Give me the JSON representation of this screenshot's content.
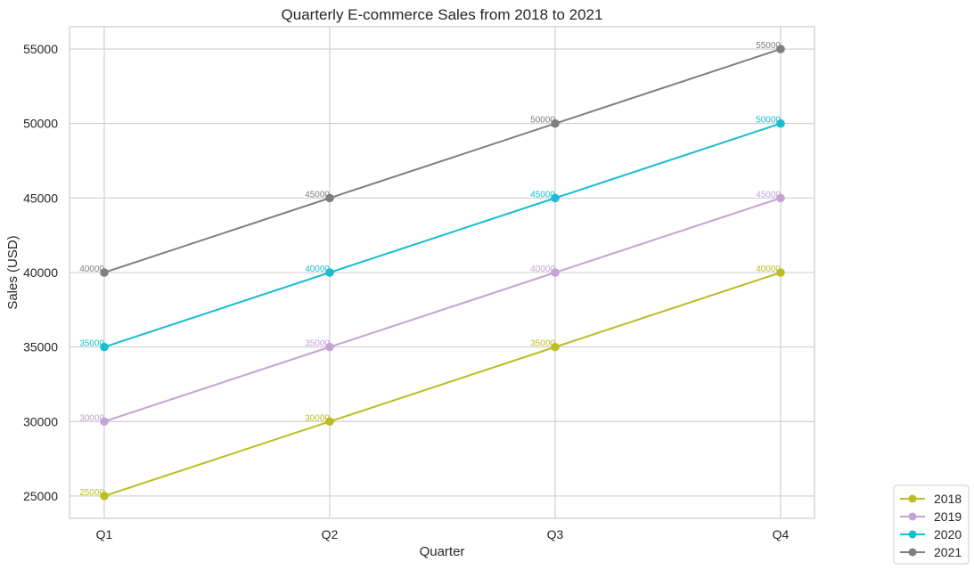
{
  "chart_data": {
    "type": "line",
    "title": "Quarterly E-commerce Sales from 2018 to 2021",
    "xlabel": "Quarter",
    "ylabel": "Sales (USD)",
    "categories": [
      "Q1",
      "Q2",
      "Q3",
      "Q4"
    ],
    "yticks": [
      25000,
      30000,
      35000,
      40000,
      45000,
      50000,
      55000
    ],
    "ylim": [
      23500,
      56500
    ],
    "grid": true,
    "legend_position": "bottom-right, outside plot",
    "series": [
      {
        "name": "2018",
        "color": "#bcbd22",
        "values": [
          25000,
          30000,
          35000,
          40000
        ]
      },
      {
        "name": "2019",
        "color": "#c5a3d6",
        "values": [
          30000,
          35000,
          40000,
          45000
        ]
      },
      {
        "name": "2020",
        "color": "#17becf",
        "values": [
          35000,
          40000,
          45000,
          50000
        ]
      },
      {
        "name": "2021",
        "color": "#7f7f7f",
        "values": [
          40000,
          45000,
          50000,
          55000
        ]
      }
    ]
  }
}
